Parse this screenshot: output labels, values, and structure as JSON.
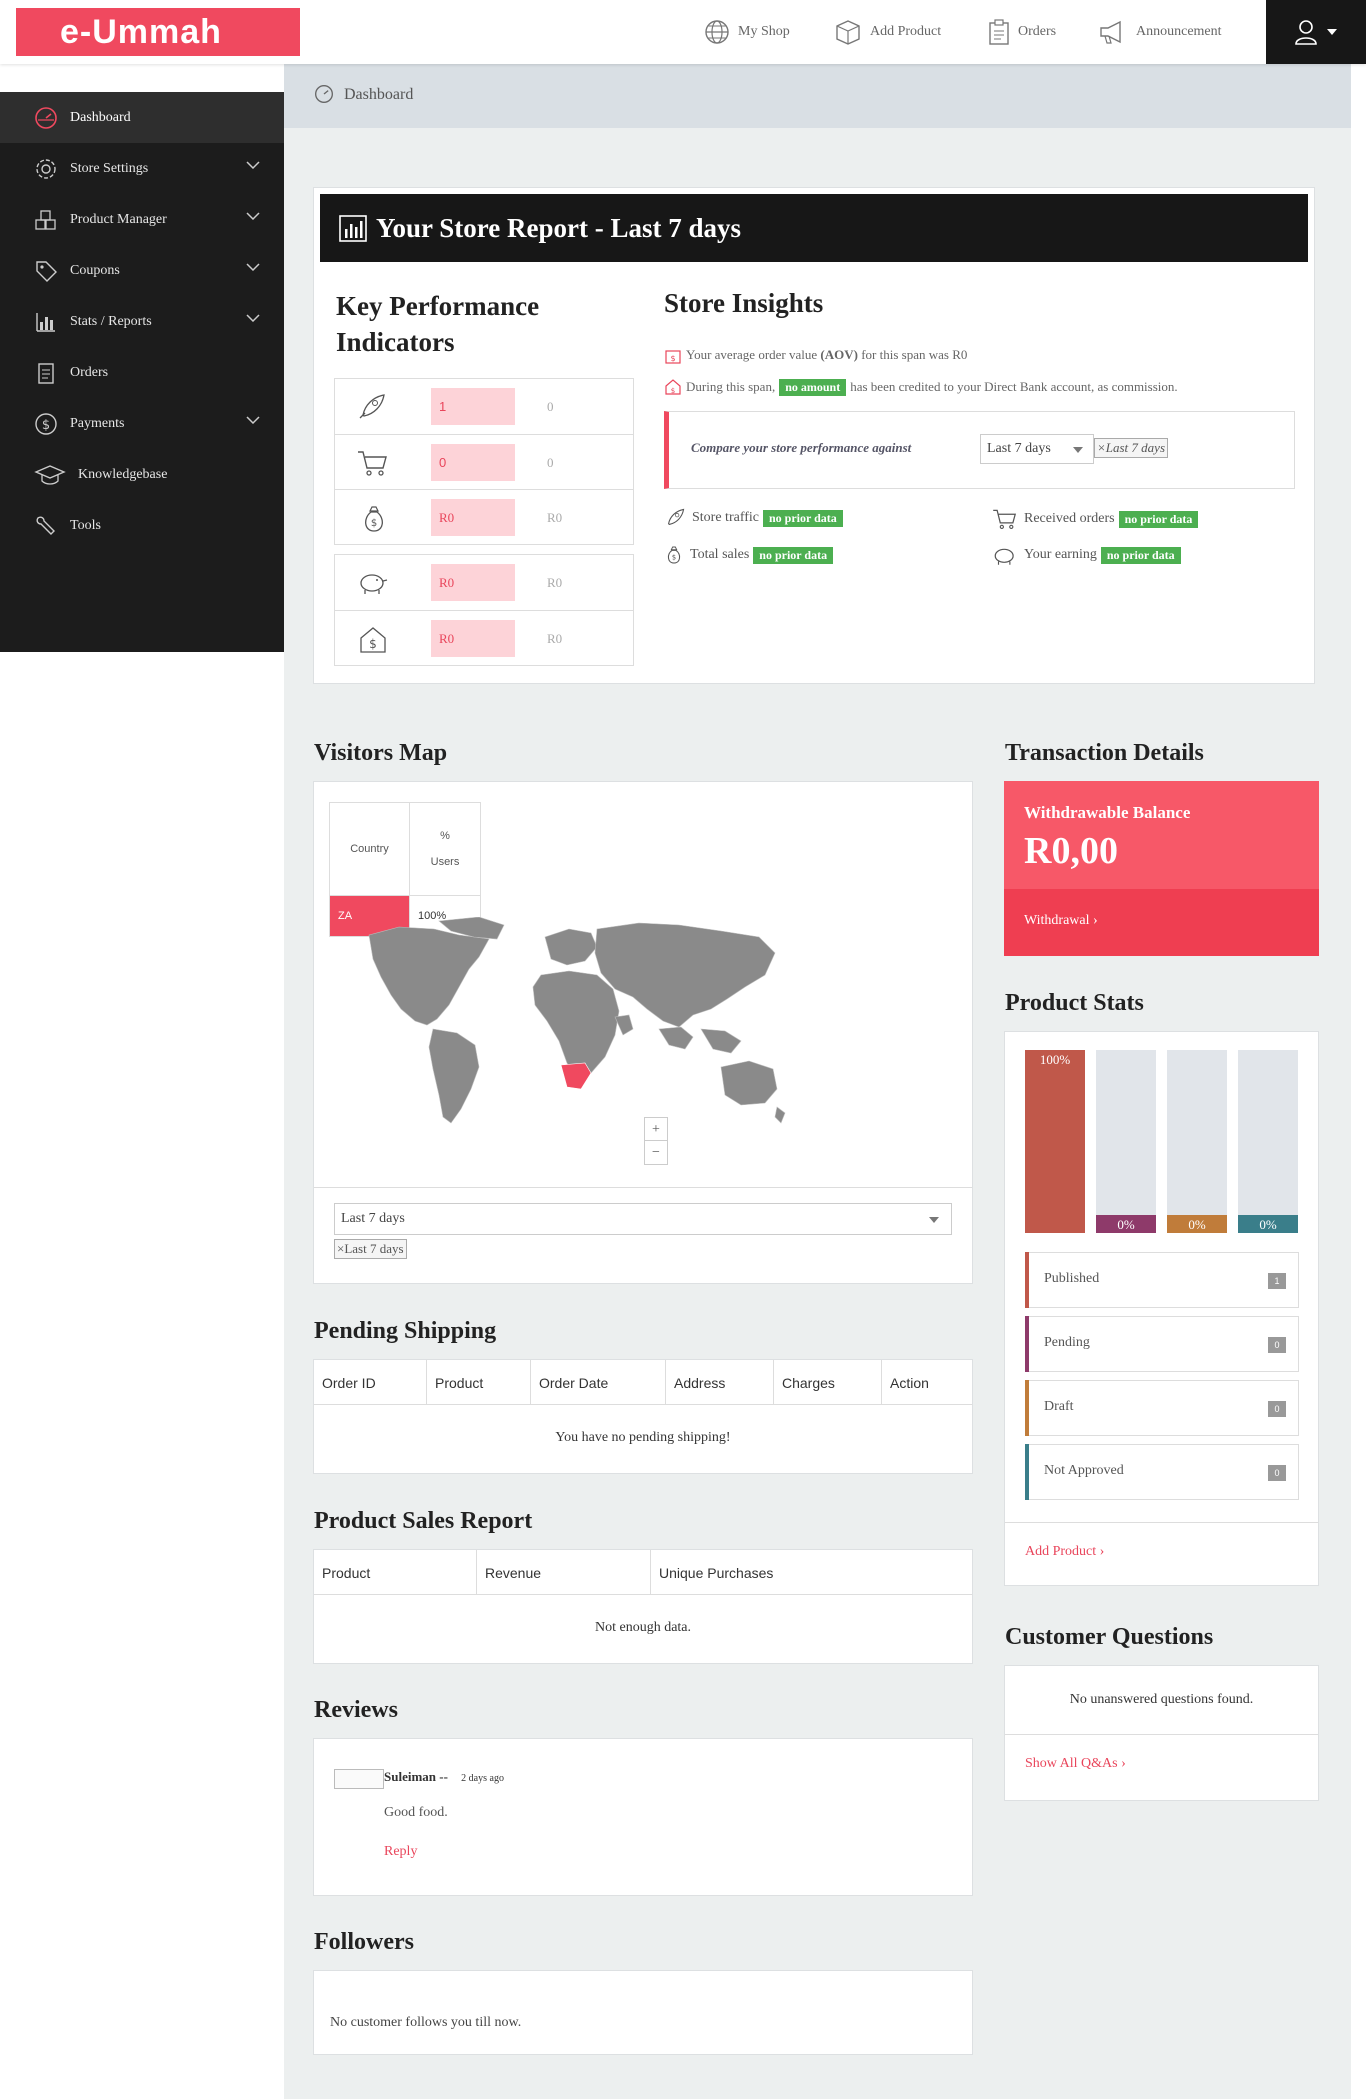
{
  "brand": {
    "logo_text": "e-Ummah",
    "accent": "#f0495f"
  },
  "topnav": [
    {
      "label": "My Shop",
      "icon": "globe-icon"
    },
    {
      "label": "Add Product",
      "icon": "box-icon"
    },
    {
      "label": "Orders",
      "icon": "clipboard-icon"
    },
    {
      "label": "Announcement",
      "icon": "megaphone-icon"
    }
  ],
  "sidebar": {
    "items": [
      {
        "label": "Dashboard",
        "icon": "dashboard-icon",
        "active": true
      },
      {
        "label": "Store Settings",
        "icon": "gear-icon",
        "expandable": true
      },
      {
        "label": "Product Manager",
        "icon": "cubes-icon",
        "expandable": true
      },
      {
        "label": "Coupons",
        "icon": "tag-icon",
        "expandable": true
      },
      {
        "label": "Stats / Reports",
        "icon": "bar-chart-icon",
        "expandable": true
      },
      {
        "label": "Orders",
        "icon": "orders-icon"
      },
      {
        "label": "Payments",
        "icon": "dollar-icon",
        "expandable": true
      },
      {
        "label": "Knowledgebase",
        "icon": "graduation-cap-icon"
      },
      {
        "label": "Tools",
        "icon": "wrench-icon"
      }
    ]
  },
  "breadcrumb": {
    "label": "Dashboard"
  },
  "report": {
    "title": "Your Store Report - Last 7 days",
    "kpi_title_line1": "Key Performance",
    "kpi_title_line2": "Indicators",
    "kpi_group1": [
      {
        "icon": "rocket-icon",
        "value": "1",
        "prev": "0"
      },
      {
        "icon": "cart-icon",
        "value": "0",
        "prev": "0"
      },
      {
        "icon": "money-bag-icon",
        "value": "R0",
        "prev": "R0"
      }
    ],
    "kpi_group2": [
      {
        "icon": "piggy-bank-icon",
        "value": "R0",
        "prev": "R0"
      },
      {
        "icon": "dollar-house-icon",
        "value": "R0",
        "prev": "R0"
      }
    ],
    "insights_title": "Store Insights",
    "aov_pre": "Your average order value",
    "aov_bold": "(AOV)",
    "aov_post": "for this span was R0",
    "credit_pre": "During this span,",
    "credit_badge": "no amount",
    "credit_post": "has been credited to your Direct Bank account, as commission.",
    "compare_label": "Compare your store performance against",
    "compare_select": "Last 7 days",
    "compare_tag": "×Last 7 days",
    "stats": [
      {
        "label": "Store traffic",
        "badge": "no prior data",
        "icon": "rocket-icon"
      },
      {
        "label": "Received orders",
        "badge": "no prior data",
        "icon": "cart-icon"
      },
      {
        "label": "Total sales",
        "badge": "no prior data",
        "icon": "money-bag-icon"
      },
      {
        "label": "Your earning",
        "badge": "no prior data",
        "icon": "piggy-bank-icon"
      }
    ]
  },
  "visitors": {
    "title": "Visitors Map",
    "col_country": "Country",
    "col_pct_1": "%",
    "col_pct_2": "Users",
    "row_country": "ZA",
    "row_pct": "100%",
    "zoom_in": "+",
    "zoom_out": "−",
    "range_select": "Last 7 days",
    "range_tag": "×Last 7 days"
  },
  "pending": {
    "title": "Pending Shipping",
    "columns": [
      "Order ID",
      "Product",
      "Order Date",
      "Address",
      "Charges",
      "Action"
    ],
    "empty": "You have no pending shipping!"
  },
  "sales": {
    "title": "Product Sales Report",
    "columns": [
      "Product",
      "Revenue",
      "Unique Purchases"
    ],
    "empty": "Not enough data."
  },
  "reviews": {
    "title": "Reviews",
    "author": "Suleiman --",
    "time": "2 days ago",
    "text": "Good food.",
    "reply": "Reply"
  },
  "followers": {
    "title": "Followers",
    "empty": "No customer follows you till now."
  },
  "transaction": {
    "title": "Transaction Details",
    "balance_label": "Withdrawable Balance",
    "balance_amount": "R0,00",
    "withdrawal_link": "Withdrawal ›"
  },
  "product_stats": {
    "title": "Product Stats",
    "bars": [
      {
        "label": "100%",
        "fraction": 1.0,
        "color": "#c0584a"
      },
      {
        "label": "0%",
        "fraction": 0.0,
        "color": "#8e3a6a"
      },
      {
        "label": "0%",
        "fraction": 0.0,
        "color": "#c07c3a"
      },
      {
        "label": "0%",
        "fraction": 0.0,
        "color": "#3a7e8a"
      }
    ],
    "rows": [
      {
        "label": "Published",
        "count": "1",
        "color": "#c0584a"
      },
      {
        "label": "Pending",
        "count": "0",
        "color": "#8e3a6a"
      },
      {
        "label": "Draft",
        "count": "0",
        "color": "#c07c3a"
      },
      {
        "label": "Not Approved",
        "count": "0",
        "color": "#3a7e8a"
      }
    ],
    "add_link": "Add Product ›"
  },
  "questions": {
    "title": "Customer Questions",
    "empty": "No unanswered questions found.",
    "link": "Show All Q&As ›"
  }
}
